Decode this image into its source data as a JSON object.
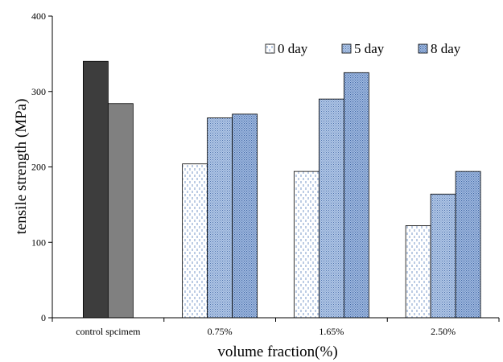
{
  "chart_data": {
    "type": "bar",
    "xlabel": "volume fraction(%)",
    "ylabel": "tensile strength (MPa)",
    "ylim": [
      0,
      400
    ],
    "yticks": [
      0,
      100,
      200,
      300,
      400
    ],
    "grid": false,
    "legend_position": "top-right",
    "categories": [
      "control spcimem",
      "0.75%",
      "1.65%",
      "2.50%"
    ],
    "control_values": [
      340,
      284
    ],
    "control_colors": [
      "#3d3d3d",
      "#808080"
    ],
    "series": [
      {
        "name": "0 day",
        "values": [
          null,
          204,
          194,
          122
        ],
        "color": "#ffffff",
        "pattern": "dashes"
      },
      {
        "name": "5 day",
        "values": [
          null,
          265,
          290,
          164
        ],
        "color": "#a9c0e3",
        "pattern": "dots"
      },
      {
        "name": "8 day",
        "values": [
          null,
          270,
          325,
          194
        ],
        "color": "#9db7e0",
        "pattern": "dots"
      }
    ]
  }
}
